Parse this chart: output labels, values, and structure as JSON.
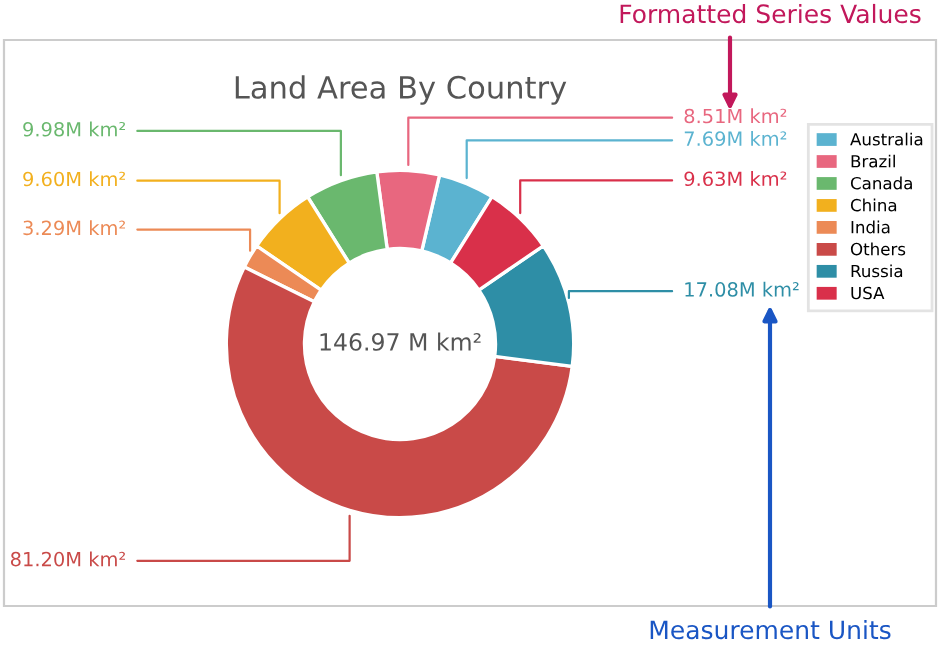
{
  "chart_data": {
    "type": "donut",
    "title": "Land Area By Country",
    "categories": [
      "Australia",
      "Brazil",
      "Canada",
      "China",
      "India",
      "Others",
      "Russia",
      "USA"
    ],
    "values": [
      7.69,
      8.51,
      9.98,
      9.6,
      3.29,
      81.2,
      17.08,
      9.63
    ],
    "colors": [
      "#5bb3d0",
      "#e8677f",
      "#6ab86e",
      "#f2b01e",
      "#ec8a56",
      "#c94a48",
      "#2e8ea6",
      "#d9304a"
    ],
    "value_labels": [
      "7.69M km²",
      "8.51M km²",
      "9.98M km²",
      "9.60M km²",
      "3.29M km²",
      "81.20M km²",
      "17.08M km²",
      "9.63M km²"
    ],
    "annotations": [
      "146.97 M km²",
      "Formatted Series Values",
      "Measurement Units"
    ],
    "legend": "right"
  }
}
